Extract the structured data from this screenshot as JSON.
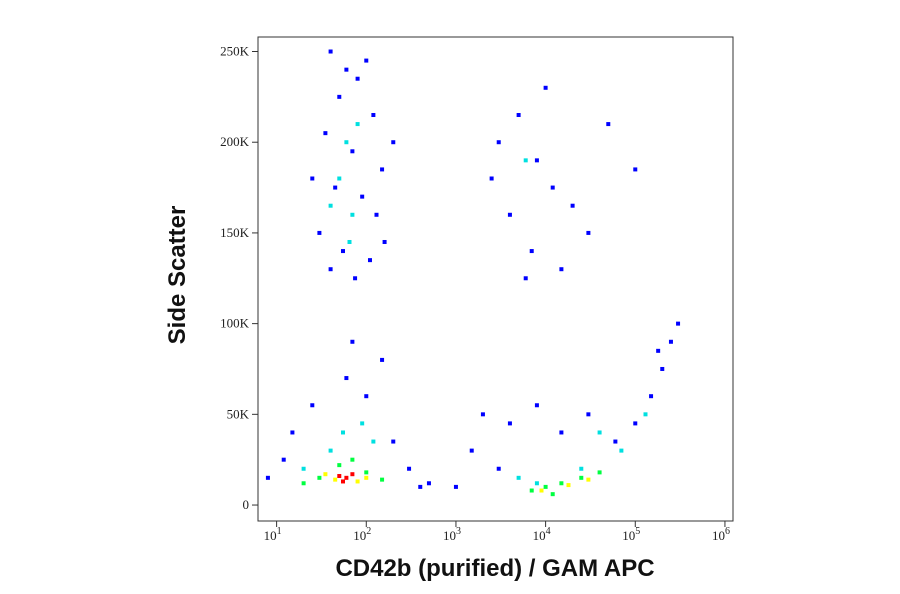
{
  "chart_data": {
    "type": "scatter",
    "xlabel": "CD42b (purified) / GAM APC",
    "ylabel": "Side Scatter",
    "xscale": "log",
    "xlim": [
      6.2,
      1230000
    ],
    "ylim": [
      -8800,
      258000
    ],
    "xticks": [
      {
        "value": 10,
        "label": "10",
        "exponent": "1"
      },
      {
        "value": 100,
        "label": "10",
        "exponent": "2"
      },
      {
        "value": 1000,
        "label": "10",
        "exponent": "3"
      },
      {
        "value": 10000,
        "label": "10",
        "exponent": "4"
      },
      {
        "value": 100000,
        "label": "10",
        "exponent": "5"
      },
      {
        "value": 1000000,
        "label": "10",
        "exponent": "6"
      }
    ],
    "yticks": [
      0,
      {
        "value": 50000,
        "label": "50K"
      },
      {
        "value": 100000,
        "label": "100K"
      },
      {
        "value": 150000,
        "label": "150K"
      },
      {
        "value": 200000,
        "label": "200K"
      },
      {
        "value": 250000,
        "label": "250K"
      }
    ],
    "series": [
      {
        "color": "#0000ff",
        "x": [
          40,
          60,
          80,
          100,
          50,
          120,
          35,
          70,
          150,
          45,
          90,
          130,
          30,
          55,
          110,
          75,
          160,
          40,
          200,
          25,
          3000,
          5000,
          8000,
          12000,
          4000,
          20000,
          7000,
          15000,
          30000,
          6000,
          2500,
          10000,
          50000,
          100000,
          2000,
          4000,
          8000,
          15000,
          30000,
          1500,
          3000,
          60000,
          100000,
          150000,
          200000,
          250000,
          300000,
          180000,
          1000,
          500,
          15,
          25,
          60,
          100,
          200,
          300,
          12,
          8,
          400,
          150,
          70
        ],
        "values": [
          250000,
          240000,
          235000,
          245000,
          225000,
          215000,
          205000,
          195000,
          185000,
          175000,
          170000,
          160000,
          150000,
          140000,
          135000,
          125000,
          145000,
          130000,
          200000,
          180000,
          200000,
          215000,
          190000,
          175000,
          160000,
          165000,
          140000,
          130000,
          150000,
          125000,
          180000,
          230000,
          210000,
          185000,
          50000,
          45000,
          55000,
          40000,
          50000,
          30000,
          20000,
          35000,
          45000,
          60000,
          75000,
          90000,
          100000,
          85000,
          10000,
          12000,
          40000,
          55000,
          70000,
          60000,
          35000,
          20000,
          25000,
          15000,
          10000,
          80000,
          90000
        ]
      },
      {
        "color": "#00e0e0",
        "x": [
          60,
          50,
          70,
          40,
          80,
          65,
          55,
          90,
          40,
          120,
          6000,
          40000,
          70000,
          130000,
          25000,
          8000,
          5000,
          20
        ],
        "values": [
          200000,
          180000,
          160000,
          165000,
          210000,
          145000,
          40000,
          45000,
          30000,
          35000,
          190000,
          40000,
          30000,
          50000,
          20000,
          12000,
          15000,
          20000
        ]
      },
      {
        "color": "#00ff40",
        "x": [
          30,
          50,
          100,
          150,
          20,
          70,
          7000,
          10000,
          15000,
          25000,
          40000,
          12000
        ],
        "values": [
          15000,
          22000,
          18000,
          14000,
          12000,
          25000,
          8000,
          10000,
          12000,
          15000,
          18000,
          6000
        ]
      },
      {
        "color": "#ffff00",
        "x": [
          35,
          45,
          80,
          100,
          9000,
          18000,
          30000
        ],
        "values": [
          17000,
          14000,
          13000,
          15000,
          8000,
          11000,
          14000
        ]
      },
      {
        "color": "#ff0000",
        "x": [
          50,
          60,
          70,
          55
        ],
        "values": [
          16000,
          15000,
          17000,
          13000
        ]
      }
    ]
  }
}
